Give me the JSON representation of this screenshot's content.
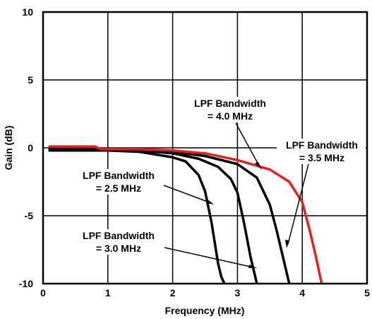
{
  "chart_data": {
    "type": "line",
    "xlabel": "Frequency (MHz)",
    "ylabel": "Gain (dB)",
    "xlim": [
      0,
      5
    ],
    "ylim": [
      -10,
      10
    ],
    "x_ticks": [
      "0",
      "1",
      "2",
      "3",
      "4",
      "5"
    ],
    "y_ticks": [
      "10",
      "5",
      "0",
      "-5",
      "-10"
    ],
    "grid": true,
    "colors": {
      "highlight": "#e8201c",
      "default": "#000000"
    },
    "series": [
      {
        "label_lines": [
          "LPF Bandwidth",
          "= 2.5 MHz"
        ],
        "color": "#000000",
        "x": [
          0.1,
          0.5,
          1.0,
          1.5,
          2.0,
          2.2,
          2.4,
          2.5,
          2.6,
          2.65,
          2.7,
          2.75,
          2.8
        ],
        "y": [
          -0.2,
          -0.2,
          -0.2,
          -0.3,
          -0.7,
          -1.0,
          -2.0,
          -3.2,
          -5.5,
          -7.0,
          -8.5,
          -9.5,
          -10
        ]
      },
      {
        "label_lines": [
          "LPF Bandwidth",
          "= 3.0 MHz"
        ],
        "color": "#000000",
        "x": [
          0.1,
          0.5,
          1.0,
          1.5,
          2.0,
          2.4,
          2.7,
          2.9,
          3.0,
          3.1,
          3.2,
          3.3
        ],
        "y": [
          -0.1,
          -0.1,
          -0.1,
          -0.2,
          -0.4,
          -0.8,
          -1.4,
          -2.3,
          -3.3,
          -5.5,
          -8.0,
          -10
        ]
      },
      {
        "label_lines": [
          "LPF Bandwidth",
          "= 3.5 MHz"
        ],
        "color": "#000000",
        "x": [
          0.1,
          0.5,
          1.0,
          1.5,
          2.0,
          2.5,
          3.0,
          3.3,
          3.5,
          3.6,
          3.7,
          3.8
        ],
        "y": [
          0.0,
          0.0,
          -0.1,
          -0.2,
          -0.3,
          -0.6,
          -1.2,
          -2.2,
          -4.2,
          -6.0,
          -8.0,
          -10
        ]
      },
      {
        "label_lines": [
          "LPF Bandwidth",
          "= 4.0 MHz"
        ],
        "color": "#e8201c",
        "x": [
          0.1,
          0.8,
          0.9,
          1.5,
          2.0,
          2.5,
          3.0,
          3.5,
          3.8,
          4.0,
          4.1,
          4.2,
          4.3
        ],
        "y": [
          0.1,
          0.1,
          -0.1,
          -0.1,
          -0.2,
          -0.4,
          -0.9,
          -1.6,
          -2.5,
          -4.0,
          -5.8,
          -7.8,
          -10
        ]
      }
    ]
  }
}
